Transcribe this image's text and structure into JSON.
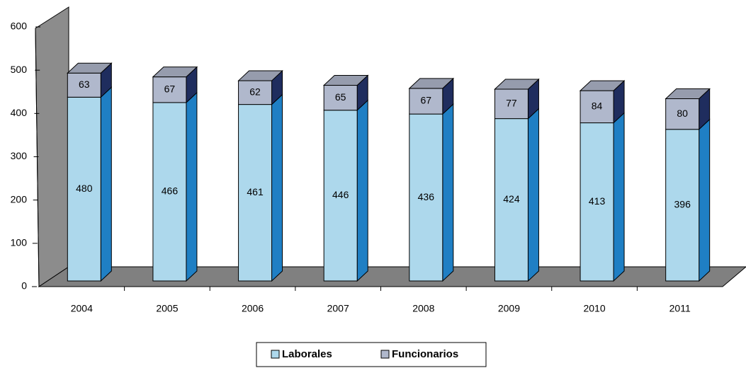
{
  "chart_data": {
    "type": "bar3d_stacked",
    "categories": [
      "2004",
      "2005",
      "2006",
      "2007",
      "2008",
      "2009",
      "2010",
      "2011"
    ],
    "series": [
      {
        "name": "Laborales",
        "color": "#add8ec",
        "values": [
          480,
          466,
          461,
          446,
          436,
          424,
          413,
          396
        ]
      },
      {
        "name": "Funcionarios",
        "color": "#b0b8cc",
        "values": [
          63,
          67,
          62,
          65,
          67,
          77,
          84,
          80
        ]
      }
    ],
    "ylim": [
      0,
      600
    ],
    "yticks": [
      0,
      100,
      200,
      300,
      400,
      500,
      600
    ],
    "legend": "bottom"
  }
}
